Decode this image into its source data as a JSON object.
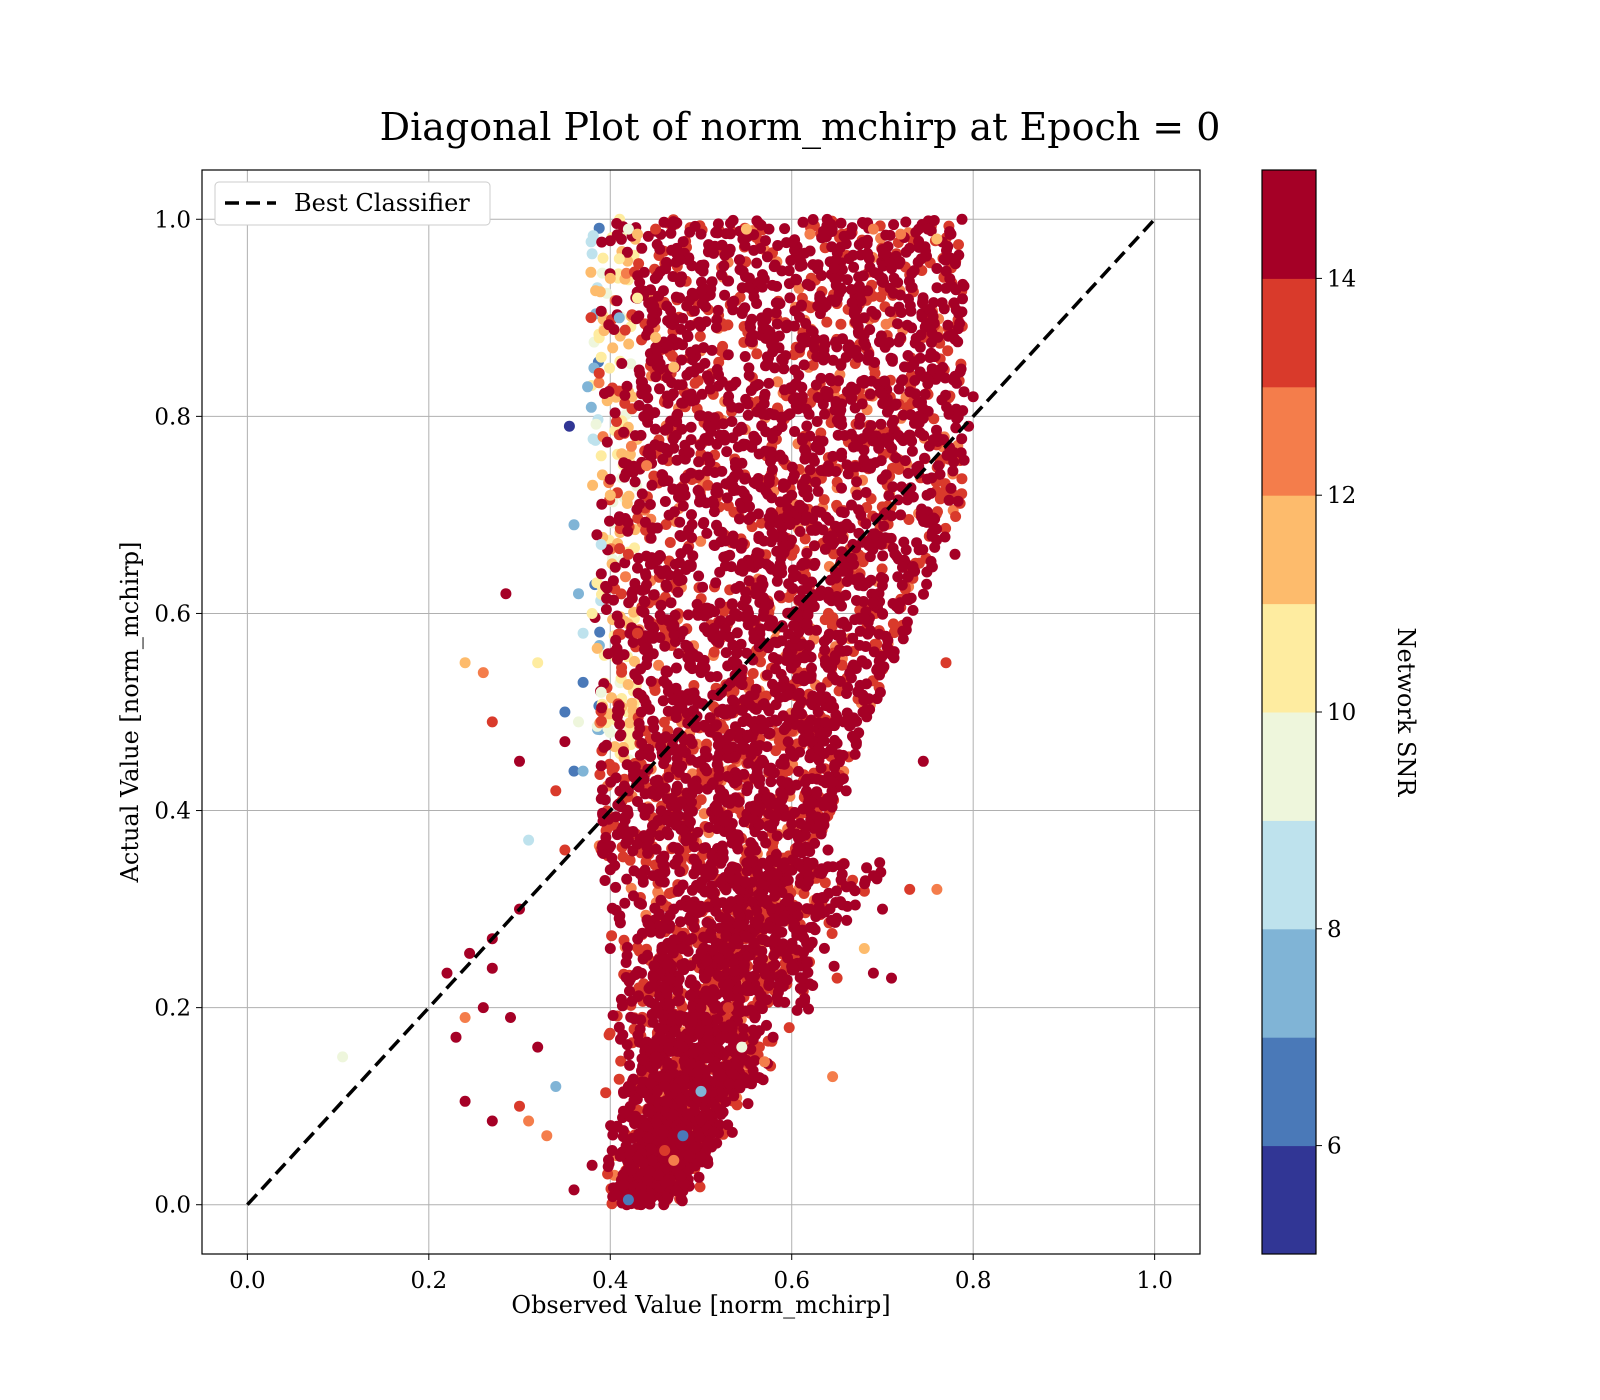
{
  "chart_data": {
    "type": "scatter",
    "title": "Diagonal Plot of norm_mchirp at Epoch = 0",
    "xlabel": "Observed Value [norm_mchirp]",
    "ylabel": "Actual Value [norm_mchirp]",
    "xlim": [
      -0.05,
      1.05
    ],
    "ylim": [
      -0.05,
      1.05
    ],
    "xticks": [
      "0.0",
      "0.2",
      "0.4",
      "0.6",
      "0.8",
      "1.0"
    ],
    "yticks": [
      "0.0",
      "0.2",
      "0.4",
      "0.6",
      "0.8",
      "1.0"
    ],
    "grid": true,
    "legend": {
      "position": "top-left",
      "entries": [
        "Best Classifier"
      ]
    },
    "reference_line": {
      "name": "Best Classifier",
      "x": [
        0.0,
        1.0
      ],
      "y": [
        0.0,
        1.0
      ],
      "style": "dashed",
      "color": "#000000"
    },
    "colorbar": {
      "label": "Network SNR",
      "range": [
        5,
        15
      ],
      "ticks": [
        "6",
        "8",
        "10",
        "12",
        "14"
      ],
      "colors": [
        "#313695",
        "#4a79b8",
        "#80b4d6",
        "#bee2ed",
        "#eef6dc",
        "#feeca0",
        "#fdbb6c",
        "#f47d4b",
        "#d93a2b",
        "#a50026"
      ]
    },
    "points": [
      [
        0.42,
        0.99,
        9.5
      ],
      [
        0.43,
        0.985,
        11
      ],
      [
        0.45,
        0.99,
        13
      ],
      [
        0.5,
        0.985,
        14.5
      ],
      [
        0.55,
        0.99,
        11
      ],
      [
        0.575,
        0.99,
        15
      ],
      [
        0.62,
        0.985,
        12
      ],
      [
        0.66,
        0.975,
        14
      ],
      [
        0.69,
        0.99,
        12.5
      ],
      [
        0.75,
        0.99,
        15
      ],
      [
        0.38,
        0.965,
        8.5
      ],
      [
        0.41,
        0.9,
        7
      ],
      [
        0.375,
        0.83,
        7.5
      ],
      [
        0.355,
        0.79,
        5.5
      ],
      [
        0.36,
        0.69,
        7
      ],
      [
        0.365,
        0.62,
        7.5
      ],
      [
        0.37,
        0.58,
        8.5
      ],
      [
        0.37,
        0.53,
        6
      ],
      [
        0.365,
        0.49,
        9
      ],
      [
        0.36,
        0.44,
        6
      ],
      [
        0.26,
        0.54,
        12
      ],
      [
        0.285,
        0.62,
        14
      ],
      [
        0.32,
        0.55,
        10.5
      ],
      [
        0.24,
        0.55,
        11.5
      ],
      [
        0.27,
        0.49,
        13.5
      ],
      [
        0.3,
        0.45,
        14
      ],
      [
        0.31,
        0.37,
        8.5
      ],
      [
        0.3,
        0.3,
        15
      ],
      [
        0.27,
        0.27,
        14
      ],
      [
        0.27,
        0.24,
        14.5
      ],
      [
        0.22,
        0.235,
        14.5
      ],
      [
        0.245,
        0.255,
        14
      ],
      [
        0.26,
        0.2,
        15
      ],
      [
        0.24,
        0.19,
        12
      ],
      [
        0.23,
        0.17,
        14
      ],
      [
        0.105,
        0.15,
        9.5
      ],
      [
        0.24,
        0.105,
        14.5
      ],
      [
        0.27,
        0.085,
        14.5
      ],
      [
        0.3,
        0.1,
        13
      ],
      [
        0.31,
        0.085,
        12
      ],
      [
        0.36,
        0.015,
        14
      ],
      [
        0.42,
        0.005,
        6
      ],
      [
        0.435,
        0.01,
        15
      ],
      [
        0.5,
        0.115,
        7.5
      ],
      [
        0.48,
        0.07,
        6
      ],
      [
        0.545,
        0.16,
        9.5
      ],
      [
        0.57,
        0.145,
        12.5
      ],
      [
        0.645,
        0.13,
        12.5
      ],
      [
        0.71,
        0.23,
        14
      ],
      [
        0.73,
        0.32,
        13
      ],
      [
        0.76,
        0.32,
        12.5
      ],
      [
        0.745,
        0.45,
        15
      ],
      [
        0.77,
        0.55,
        13.5
      ],
      [
        0.78,
        0.66,
        14
      ],
      [
        0.795,
        0.79,
        14
      ],
      [
        0.8,
        0.82,
        15
      ],
      [
        0.77,
        0.93,
        15
      ],
      [
        0.76,
        0.95,
        14.5
      ],
      [
        0.74,
        0.99,
        15
      ],
      [
        0.72,
        0.985,
        12
      ],
      [
        0.76,
        0.98,
        11.5
      ],
      [
        0.7,
        0.3,
        14.5
      ],
      [
        0.69,
        0.235,
        14
      ],
      [
        0.68,
        0.26,
        11
      ],
      [
        0.65,
        0.23,
        13
      ],
      [
        0.61,
        0.205,
        14.5
      ],
      [
        0.56,
        0.175,
        14
      ],
      [
        0.53,
        0.2,
        13
      ],
      [
        0.46,
        0.055,
        13.5
      ],
      [
        0.47,
        0.045,
        12
      ],
      [
        0.38,
        0.04,
        14.5
      ],
      [
        0.34,
        0.12,
        7.5
      ],
      [
        0.33,
        0.07,
        12
      ],
      [
        0.29,
        0.19,
        14
      ],
      [
        0.32,
        0.16,
        14
      ],
      [
        0.35,
        0.36,
        13
      ],
      [
        0.34,
        0.42,
        13.5
      ],
      [
        0.35,
        0.47,
        15
      ],
      [
        0.35,
        0.5,
        6.5
      ],
      [
        0.37,
        0.44,
        7
      ],
      [
        0.39,
        0.52,
        9
      ],
      [
        0.38,
        0.6,
        10
      ],
      [
        0.39,
        0.67,
        8
      ],
      [
        0.39,
        0.76,
        10
      ],
      [
        0.39,
        0.86,
        10.5
      ],
      [
        0.4,
        0.94,
        11
      ],
      [
        0.41,
        0.96,
        10
      ],
      [
        0.43,
        0.92,
        10.5
      ],
      [
        0.45,
        0.88,
        11
      ],
      [
        0.47,
        0.85,
        11.5
      ],
      [
        0.44,
        0.75,
        12
      ],
      [
        0.4,
        0.72,
        11
      ],
      [
        0.42,
        0.66,
        13
      ],
      [
        0.43,
        0.58,
        13.5
      ],
      [
        0.41,
        0.5,
        14
      ],
      [
        0.42,
        0.42,
        15
      ],
      [
        0.4,
        0.34,
        15
      ],
      [
        0.4,
        0.26,
        14.5
      ],
      [
        0.41,
        0.18,
        15
      ],
      [
        0.42,
        0.12,
        15
      ],
      [
        0.44,
        0.08,
        14.5
      ],
      [
        0.45,
        0.15,
        15
      ],
      [
        0.46,
        0.22,
        15
      ],
      [
        0.47,
        0.3,
        15
      ],
      [
        0.48,
        0.38,
        15
      ],
      [
        0.5,
        0.45,
        14.5
      ],
      [
        0.52,
        0.5,
        15
      ],
      [
        0.54,
        0.56,
        15
      ],
      [
        0.56,
        0.62,
        14.5
      ],
      [
        0.58,
        0.68,
        15
      ],
      [
        0.6,
        0.72,
        14
      ],
      [
        0.62,
        0.78,
        15
      ],
      [
        0.64,
        0.82,
        14.5
      ],
      [
        0.66,
        0.86,
        15
      ],
      [
        0.68,
        0.9,
        14
      ],
      [
        0.7,
        0.94,
        15
      ],
      [
        0.72,
        0.88,
        14.5
      ],
      [
        0.74,
        0.8,
        15
      ],
      [
        0.72,
        0.7,
        14
      ],
      [
        0.7,
        0.6,
        15
      ],
      [
        0.68,
        0.5,
        14.5
      ],
      [
        0.66,
        0.42,
        15
      ],
      [
        0.64,
        0.36,
        14
      ],
      [
        0.62,
        0.3,
        15
      ],
      [
        0.6,
        0.26,
        14.5
      ],
      [
        0.58,
        0.32,
        15
      ],
      [
        0.56,
        0.4,
        14
      ],
      [
        0.54,
        0.3,
        15
      ],
      [
        0.52,
        0.25,
        14.5
      ],
      [
        0.5,
        0.2,
        15
      ],
      [
        0.48,
        0.16,
        14
      ],
      [
        0.46,
        0.12,
        15
      ]
    ]
  }
}
